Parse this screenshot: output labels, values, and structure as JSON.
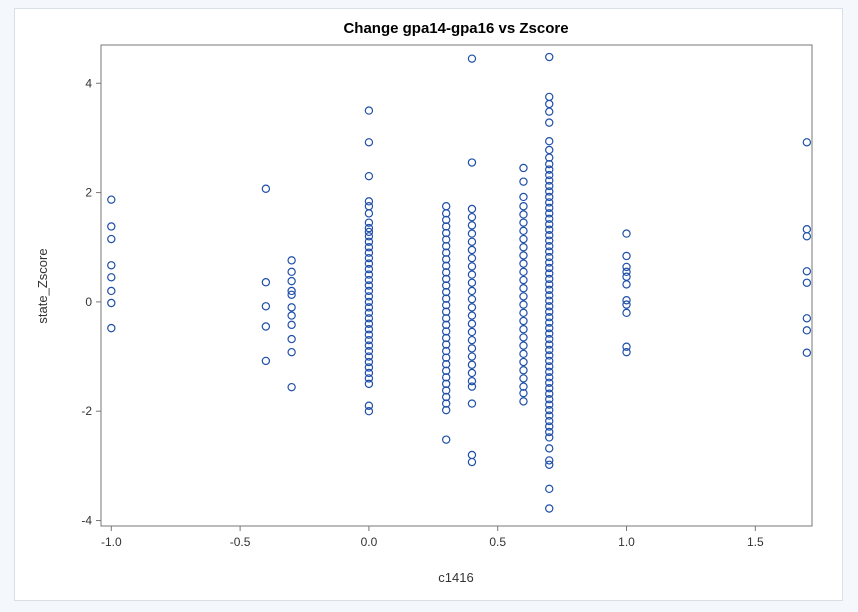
{
  "chart_data": {
    "type": "scatter",
    "title": "Change gpa14-gpa16 vs Zscore",
    "xlabel": "c1416",
    "ylabel": "state_Zscore",
    "xlim": [
      -1.04,
      1.72
    ],
    "ylim": [
      -4.1,
      4.7
    ],
    "xticks": [
      {
        "value": -1.0,
        "label": "-1.0"
      },
      {
        "value": -0.5,
        "label": "-0.5"
      },
      {
        "value": 0.0,
        "label": "0.0"
      },
      {
        "value": 0.5,
        "label": "0.5"
      },
      {
        "value": 1.0,
        "label": "1.0"
      },
      {
        "value": 1.5,
        "label": "1.5"
      }
    ],
    "yticks": [
      {
        "value": -4,
        "label": "-4"
      },
      {
        "value": -2,
        "label": "-2"
      },
      {
        "value": 0,
        "label": "0"
      },
      {
        "value": 2,
        "label": "2"
      },
      {
        "value": 4,
        "label": "4"
      }
    ],
    "grid": false,
    "legend": "none",
    "marker": "open-circle",
    "colors": {
      "marker": "#1f4fa8",
      "frame": "#d9dfe6",
      "axis": "#777777"
    },
    "points": [
      {
        "x": -1.0,
        "y": 1.87
      },
      {
        "x": -1.0,
        "y": 1.38
      },
      {
        "x": -1.0,
        "y": 1.15
      },
      {
        "x": -1.0,
        "y": 0.67
      },
      {
        "x": -1.0,
        "y": 0.45
      },
      {
        "x": -1.0,
        "y": 0.2
      },
      {
        "x": -1.0,
        "y": -0.02
      },
      {
        "x": -1.0,
        "y": -0.48
      },
      {
        "x": -0.4,
        "y": 2.07
      },
      {
        "x": -0.4,
        "y": 0.36
      },
      {
        "x": -0.4,
        "y": -0.08
      },
      {
        "x": -0.4,
        "y": -0.45
      },
      {
        "x": -0.4,
        "y": -1.08
      },
      {
        "x": -0.3,
        "y": 0.76
      },
      {
        "x": -0.3,
        "y": 0.55
      },
      {
        "x": -0.3,
        "y": 0.38
      },
      {
        "x": -0.3,
        "y": 0.2
      },
      {
        "x": -0.3,
        "y": 0.13
      },
      {
        "x": -0.3,
        "y": -0.1
      },
      {
        "x": -0.3,
        "y": -0.25
      },
      {
        "x": -0.3,
        "y": -0.42
      },
      {
        "x": -0.3,
        "y": -0.68
      },
      {
        "x": -0.3,
        "y": -0.92
      },
      {
        "x": -0.3,
        "y": -1.56
      },
      {
        "x": 0.0,
        "y": 3.5
      },
      {
        "x": 0.0,
        "y": 2.92
      },
      {
        "x": 0.0,
        "y": 2.3
      },
      {
        "x": 0.0,
        "y": 1.84
      },
      {
        "x": 0.0,
        "y": 1.75
      },
      {
        "x": 0.0,
        "y": 1.62
      },
      {
        "x": 0.0,
        "y": 1.45
      },
      {
        "x": 0.0,
        "y": 1.35
      },
      {
        "x": 0.0,
        "y": 1.28
      },
      {
        "x": 0.0,
        "y": 1.2
      },
      {
        "x": 0.0,
        "y": 1.1
      },
      {
        "x": 0.0,
        "y": 1.0
      },
      {
        "x": 0.0,
        "y": 0.9
      },
      {
        "x": 0.0,
        "y": 0.8
      },
      {
        "x": 0.0,
        "y": 0.7
      },
      {
        "x": 0.0,
        "y": 0.6
      },
      {
        "x": 0.0,
        "y": 0.5
      },
      {
        "x": 0.0,
        "y": 0.4
      },
      {
        "x": 0.0,
        "y": 0.3
      },
      {
        "x": 0.0,
        "y": 0.2
      },
      {
        "x": 0.0,
        "y": 0.1
      },
      {
        "x": 0.0,
        "y": 0.0
      },
      {
        "x": 0.0,
        "y": -0.1
      },
      {
        "x": 0.0,
        "y": -0.2
      },
      {
        "x": 0.0,
        "y": -0.3
      },
      {
        "x": 0.0,
        "y": -0.4
      },
      {
        "x": 0.0,
        "y": -0.5
      },
      {
        "x": 0.0,
        "y": -0.6
      },
      {
        "x": 0.0,
        "y": -0.7
      },
      {
        "x": 0.0,
        "y": -0.8
      },
      {
        "x": 0.0,
        "y": -0.9
      },
      {
        "x": 0.0,
        "y": -1.0
      },
      {
        "x": 0.0,
        "y": -1.1
      },
      {
        "x": 0.0,
        "y": -1.2
      },
      {
        "x": 0.0,
        "y": -1.3
      },
      {
        "x": 0.0,
        "y": -1.4
      },
      {
        "x": 0.0,
        "y": -1.5
      },
      {
        "x": 0.0,
        "y": -1.9
      },
      {
        "x": 0.0,
        "y": -2.0
      },
      {
        "x": 0.3,
        "y": 1.75
      },
      {
        "x": 0.3,
        "y": 1.62
      },
      {
        "x": 0.3,
        "y": 1.5
      },
      {
        "x": 0.3,
        "y": 1.38
      },
      {
        "x": 0.3,
        "y": 1.26
      },
      {
        "x": 0.3,
        "y": 1.14
      },
      {
        "x": 0.3,
        "y": 1.02
      },
      {
        "x": 0.3,
        "y": 0.9
      },
      {
        "x": 0.3,
        "y": 0.78
      },
      {
        "x": 0.3,
        "y": 0.66
      },
      {
        "x": 0.3,
        "y": 0.54
      },
      {
        "x": 0.3,
        "y": 0.42
      },
      {
        "x": 0.3,
        "y": 0.3
      },
      {
        "x": 0.3,
        "y": 0.18
      },
      {
        "x": 0.3,
        "y": 0.06
      },
      {
        "x": 0.3,
        "y": -0.06
      },
      {
        "x": 0.3,
        "y": -0.18
      },
      {
        "x": 0.3,
        "y": -0.3
      },
      {
        "x": 0.3,
        "y": -0.42
      },
      {
        "x": 0.3,
        "y": -0.54
      },
      {
        "x": 0.3,
        "y": -0.66
      },
      {
        "x": 0.3,
        "y": -0.78
      },
      {
        "x": 0.3,
        "y": -0.9
      },
      {
        "x": 0.3,
        "y": -1.02
      },
      {
        "x": 0.3,
        "y": -1.14
      },
      {
        "x": 0.3,
        "y": -1.26
      },
      {
        "x": 0.3,
        "y": -1.38
      },
      {
        "x": 0.3,
        "y": -1.5
      },
      {
        "x": 0.3,
        "y": -1.62
      },
      {
        "x": 0.3,
        "y": -1.74
      },
      {
        "x": 0.3,
        "y": -1.86
      },
      {
        "x": 0.3,
        "y": -1.98
      },
      {
        "x": 0.3,
        "y": -2.52
      },
      {
        "x": 0.4,
        "y": 4.45
      },
      {
        "x": 0.4,
        "y": 2.55
      },
      {
        "x": 0.4,
        "y": 1.7
      },
      {
        "x": 0.4,
        "y": 1.55
      },
      {
        "x": 0.4,
        "y": 1.4
      },
      {
        "x": 0.4,
        "y": 1.25
      },
      {
        "x": 0.4,
        "y": 1.1
      },
      {
        "x": 0.4,
        "y": 0.95
      },
      {
        "x": 0.4,
        "y": 0.8
      },
      {
        "x": 0.4,
        "y": 0.65
      },
      {
        "x": 0.4,
        "y": 0.5
      },
      {
        "x": 0.4,
        "y": 0.35
      },
      {
        "x": 0.4,
        "y": 0.2
      },
      {
        "x": 0.4,
        "y": 0.05
      },
      {
        "x": 0.4,
        "y": -0.1
      },
      {
        "x": 0.4,
        "y": -0.25
      },
      {
        "x": 0.4,
        "y": -0.4
      },
      {
        "x": 0.4,
        "y": -0.55
      },
      {
        "x": 0.4,
        "y": -0.7
      },
      {
        "x": 0.4,
        "y": -0.85
      },
      {
        "x": 0.4,
        "y": -1.0
      },
      {
        "x": 0.4,
        "y": -1.15
      },
      {
        "x": 0.4,
        "y": -1.3
      },
      {
        "x": 0.4,
        "y": -1.45
      },
      {
        "x": 0.4,
        "y": -1.55
      },
      {
        "x": 0.4,
        "y": -1.86
      },
      {
        "x": 0.4,
        "y": -2.8
      },
      {
        "x": 0.4,
        "y": -2.93
      },
      {
        "x": 0.6,
        "y": 2.45
      },
      {
        "x": 0.6,
        "y": 2.2
      },
      {
        "x": 0.6,
        "y": 1.92
      },
      {
        "x": 0.6,
        "y": 1.75
      },
      {
        "x": 0.6,
        "y": 1.6
      },
      {
        "x": 0.6,
        "y": 1.45
      },
      {
        "x": 0.6,
        "y": 1.3
      },
      {
        "x": 0.6,
        "y": 1.15
      },
      {
        "x": 0.6,
        "y": 1.0
      },
      {
        "x": 0.6,
        "y": 0.85
      },
      {
        "x": 0.6,
        "y": 0.7
      },
      {
        "x": 0.6,
        "y": 0.55
      },
      {
        "x": 0.6,
        "y": 0.4
      },
      {
        "x": 0.6,
        "y": 0.25
      },
      {
        "x": 0.6,
        "y": 0.1
      },
      {
        "x": 0.6,
        "y": -0.05
      },
      {
        "x": 0.6,
        "y": -0.2
      },
      {
        "x": 0.6,
        "y": -0.35
      },
      {
        "x": 0.6,
        "y": -0.5
      },
      {
        "x": 0.6,
        "y": -0.65
      },
      {
        "x": 0.6,
        "y": -0.8
      },
      {
        "x": 0.6,
        "y": -0.95
      },
      {
        "x": 0.6,
        "y": -1.1
      },
      {
        "x": 0.6,
        "y": -1.25
      },
      {
        "x": 0.6,
        "y": -1.4
      },
      {
        "x": 0.6,
        "y": -1.55
      },
      {
        "x": 0.6,
        "y": -1.67
      },
      {
        "x": 0.6,
        "y": -1.82
      },
      {
        "x": 0.7,
        "y": 4.48
      },
      {
        "x": 0.7,
        "y": 3.75
      },
      {
        "x": 0.7,
        "y": 3.62
      },
      {
        "x": 0.7,
        "y": 3.48
      },
      {
        "x": 0.7,
        "y": 3.28
      },
      {
        "x": 0.7,
        "y": 2.94
      },
      {
        "x": 0.7,
        "y": 2.78
      },
      {
        "x": 0.7,
        "y": 2.64
      },
      {
        "x": 0.7,
        "y": 2.52
      },
      {
        "x": 0.7,
        "y": 2.42
      },
      {
        "x": 0.7,
        "y": 2.32
      },
      {
        "x": 0.7,
        "y": 2.22
      },
      {
        "x": 0.7,
        "y": 2.12
      },
      {
        "x": 0.7,
        "y": 2.02
      },
      {
        "x": 0.7,
        "y": 1.92
      },
      {
        "x": 0.7,
        "y": 1.82
      },
      {
        "x": 0.7,
        "y": 1.72
      },
      {
        "x": 0.7,
        "y": 1.62
      },
      {
        "x": 0.7,
        "y": 1.52
      },
      {
        "x": 0.7,
        "y": 1.42
      },
      {
        "x": 0.7,
        "y": 1.32
      },
      {
        "x": 0.7,
        "y": 1.22
      },
      {
        "x": 0.7,
        "y": 1.12
      },
      {
        "x": 0.7,
        "y": 1.02
      },
      {
        "x": 0.7,
        "y": 0.92
      },
      {
        "x": 0.7,
        "y": 0.82
      },
      {
        "x": 0.7,
        "y": 0.72
      },
      {
        "x": 0.7,
        "y": 0.62
      },
      {
        "x": 0.7,
        "y": 0.52
      },
      {
        "x": 0.7,
        "y": 0.42
      },
      {
        "x": 0.7,
        "y": 0.32
      },
      {
        "x": 0.7,
        "y": 0.22
      },
      {
        "x": 0.7,
        "y": 0.12
      },
      {
        "x": 0.7,
        "y": 0.02
      },
      {
        "x": 0.7,
        "y": -0.08
      },
      {
        "x": 0.7,
        "y": -0.18
      },
      {
        "x": 0.7,
        "y": -0.28
      },
      {
        "x": 0.7,
        "y": -0.38
      },
      {
        "x": 0.7,
        "y": -0.48
      },
      {
        "x": 0.7,
        "y": -0.58
      },
      {
        "x": 0.7,
        "y": -0.68
      },
      {
        "x": 0.7,
        "y": -0.78
      },
      {
        "x": 0.7,
        "y": -0.88
      },
      {
        "x": 0.7,
        "y": -0.98
      },
      {
        "x": 0.7,
        "y": -1.08
      },
      {
        "x": 0.7,
        "y": -1.18
      },
      {
        "x": 0.7,
        "y": -1.28
      },
      {
        "x": 0.7,
        "y": -1.38
      },
      {
        "x": 0.7,
        "y": -1.48
      },
      {
        "x": 0.7,
        "y": -1.58
      },
      {
        "x": 0.7,
        "y": -1.68
      },
      {
        "x": 0.7,
        "y": -1.78
      },
      {
        "x": 0.7,
        "y": -1.88
      },
      {
        "x": 0.7,
        "y": -1.98
      },
      {
        "x": 0.7,
        "y": -2.08
      },
      {
        "x": 0.7,
        "y": -2.18
      },
      {
        "x": 0.7,
        "y": -2.28
      },
      {
        "x": 0.7,
        "y": -2.38
      },
      {
        "x": 0.7,
        "y": -2.48
      },
      {
        "x": 0.7,
        "y": -2.68
      },
      {
        "x": 0.7,
        "y": -2.9
      },
      {
        "x": 0.7,
        "y": -2.98
      },
      {
        "x": 0.7,
        "y": -3.42
      },
      {
        "x": 0.7,
        "y": -3.78
      },
      {
        "x": 1.0,
        "y": 1.25
      },
      {
        "x": 1.0,
        "y": 0.84
      },
      {
        "x": 1.0,
        "y": 0.64
      },
      {
        "x": 1.0,
        "y": 0.55
      },
      {
        "x": 1.0,
        "y": 0.46
      },
      {
        "x": 1.0,
        "y": 0.32
      },
      {
        "x": 1.0,
        "y": 0.03
      },
      {
        "x": 1.0,
        "y": -0.05
      },
      {
        "x": 1.0,
        "y": -0.2
      },
      {
        "x": 1.0,
        "y": -0.82
      },
      {
        "x": 1.0,
        "y": -0.92
      },
      {
        "x": 1.7,
        "y": 2.92
      },
      {
        "x": 1.7,
        "y": 1.33
      },
      {
        "x": 1.7,
        "y": 1.2
      },
      {
        "x": 1.7,
        "y": 0.56
      },
      {
        "x": 1.7,
        "y": 0.35
      },
      {
        "x": 1.7,
        "y": -0.3
      },
      {
        "x": 1.7,
        "y": -0.52
      },
      {
        "x": 1.7,
        "y": -0.93
      }
    ]
  }
}
